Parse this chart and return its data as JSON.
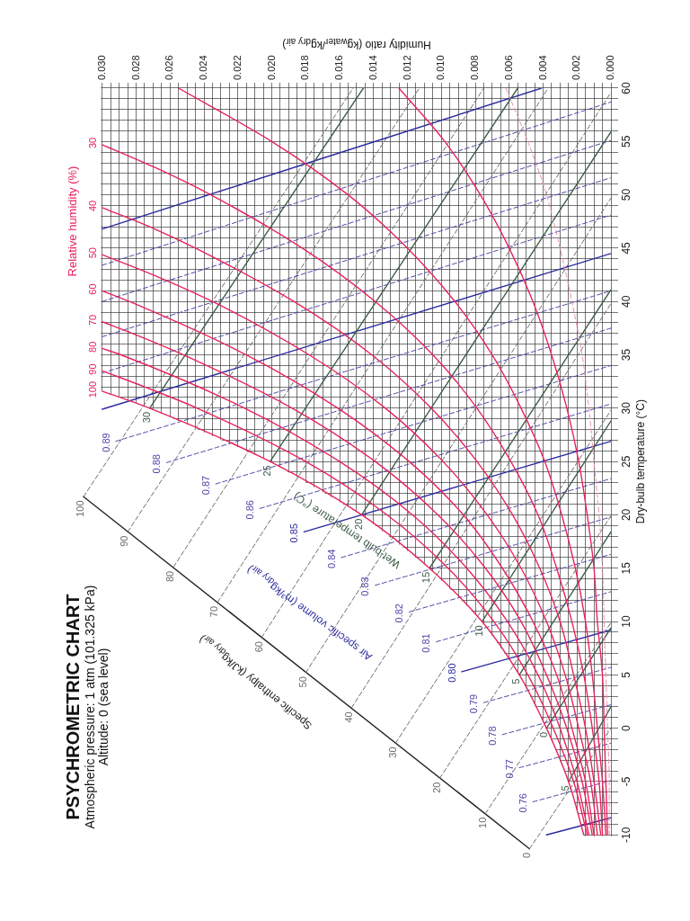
{
  "chart_data": {
    "type": "line",
    "title": "PSYCHROMETRIC CHART",
    "subtitle": "Atmospheric pressure: 1 atm (101.325 kPa)\nAltitude: 0 (sea level)",
    "xlabel": "Humidity ratio (kg$_{water}$/kg$_{dry air}$)",
    "ylabel": "Dry-bulb temperature (°C)",
    "xlim": [
      0.032,
      0
    ],
    "ylim": [
      -12,
      60
    ],
    "xticks": [
      {
        "value": 0,
        "label": "0.000"
      },
      {
        "value": 0.0005,
        "label": null
      },
      {
        "value": 0.001,
        "label": null
      },
      {
        "value": 0.0015,
        "label": null
      },
      {
        "value": 0.002,
        "label": "0.002"
      },
      {
        "value": 0.0025,
        "label": null
      },
      {
        "value": 0.003,
        "label": null
      },
      {
        "value": 0.0035,
        "label": null
      },
      {
        "value": 0.004,
        "label": "0.004"
      },
      {
        "value": 0.0045,
        "label": null
      },
      {
        "value": 0.005,
        "label": null
      },
      {
        "value": 0.0055,
        "label": null
      },
      {
        "value": 0.006,
        "label": "0.006"
      },
      {
        "value": 0.0065,
        "label": null
      },
      {
        "value": 0.007,
        "label": null
      },
      {
        "value": 0.0075,
        "label": null
      },
      {
        "value": 0.008,
        "label": "0.008"
      },
      {
        "value": 0.0085,
        "label": null
      },
      {
        "value": 0.009,
        "label": null
      },
      {
        "value": 0.0095,
        "label": null
      },
      {
        "value": 0.01,
        "label": "0.010"
      },
      {
        "value": 0.0105,
        "label": null
      },
      {
        "value": 0.011,
        "label": null
      },
      {
        "value": 0.0115,
        "label": null
      },
      {
        "value": 0.012,
        "label": "0.012"
      },
      {
        "value": 0.0125,
        "label": null
      },
      {
        "value": 0.013,
        "label": null
      },
      {
        "value": 0.0135,
        "label": null
      },
      {
        "value": 0.014,
        "label": "0.014"
      },
      {
        "value": 0.0145,
        "label": null
      },
      {
        "value": 0.015,
        "label": null
      },
      {
        "value": 0.0155,
        "label": null
      },
      {
        "value": 0.016,
        "label": "0.016"
      },
      {
        "value": 0.0165,
        "label": null
      },
      {
        "value": 0.017,
        "label": null
      },
      {
        "value": 0.0175,
        "label": null
      },
      {
        "value": 0.018,
        "label": "0.018"
      },
      {
        "value": 0.0185,
        "label": null
      },
      {
        "value": 0.019,
        "label": null
      },
      {
        "value": 0.0195,
        "label": null
      },
      {
        "value": 0.02,
        "label": "0.020"
      },
      {
        "value": 0.0205,
        "label": null
      },
      {
        "value": 0.021,
        "label": null
      },
      {
        "value": 0.0215,
        "label": null
      },
      {
        "value": 0.022,
        "label": "0.022"
      },
      {
        "value": 0.0225,
        "label": null
      },
      {
        "value": 0.023,
        "label": null
      },
      {
        "value": 0.0235,
        "label": null
      },
      {
        "value": 0.024,
        "label": "0.024"
      },
      {
        "value": 0.0245,
        "label": null
      },
      {
        "value": 0.025,
        "label": null
      },
      {
        "value": 0.0255,
        "label": null
      },
      {
        "value": 0.026,
        "label": "0.026"
      },
      {
        "value": 0.0265,
        "label": null
      },
      {
        "value": 0.027,
        "label": null
      },
      {
        "value": 0.0275,
        "label": null
      },
      {
        "value": 0.028,
        "label": "0.028"
      },
      {
        "value": 0.0285,
        "label": null
      },
      {
        "value": 0.029,
        "label": null
      },
      {
        "value": 0.0295,
        "label": null
      },
      {
        "value": 0.03,
        "label": "0.030"
      }
    ],
    "yticks": [
      -10,
      {
        "value": -9,
        "label": null
      },
      {
        "value": -8,
        "label": null
      },
      {
        "value": -7,
        "label": null
      },
      {
        "value": -6,
        "label": null
      },
      -5,
      {
        "value": -4,
        "label": null
      },
      {
        "value": -3,
        "label": null
      },
      {
        "value": -2,
        "label": null
      },
      {
        "value": -1,
        "label": null
      },
      0,
      {
        "value": 1,
        "label": null
      },
      {
        "value": 2,
        "label": null
      },
      {
        "value": 3,
        "label": null
      },
      {
        "value": 4,
        "label": null
      },
      5,
      {
        "value": 6,
        "label": null
      },
      {
        "value": 7,
        "label": null
      },
      {
        "value": 8,
        "label": null
      },
      {
        "value": 9,
        "label": null
      },
      10,
      {
        "value": 11,
        "label": null
      },
      {
        "value": 12,
        "label": null
      },
      {
        "value": 13,
        "label": null
      },
      {
        "value": 14,
        "label": null
      },
      15,
      {
        "value": 16,
        "label": null
      },
      {
        "value": 17,
        "label": null
      },
      {
        "value": 18,
        "label": null
      },
      {
        "value": 19,
        "label": null
      },
      20,
      {
        "value": 21,
        "label": null
      },
      {
        "value": 22,
        "label": null
      },
      {
        "value": 23,
        "label": null
      },
      {
        "value": 24,
        "label": null
      },
      25,
      {
        "value": 26,
        "label": null
      },
      {
        "value": 27,
        "label": null
      },
      {
        "value": 28,
        "label": null
      },
      {
        "value": 29,
        "label": null
      },
      30,
      {
        "value": 31,
        "label": null
      },
      {
        "value": 32,
        "label": null
      },
      {
        "value": 33,
        "label": null
      },
      {
        "value": 34,
        "label": null
      },
      35,
      {
        "value": 36,
        "label": null
      },
      {
        "value": 37,
        "label": null
      },
      {
        "value": 38,
        "label": null
      },
      {
        "value": 39,
        "label": null
      },
      40,
      {
        "value": 41,
        "label": null
      },
      {
        "value": 42,
        "label": null
      },
      {
        "value": 43,
        "label": null
      },
      {
        "value": 44,
        "label": null
      },
      45,
      {
        "value": 46,
        "label": null
      },
      {
        "value": 47,
        "label": null
      },
      {
        "value": 48,
        "label": null
      },
      {
        "value": 49,
        "label": null
      },
      50,
      {
        "value": 51,
        "label": null
      },
      {
        "value": 52,
        "label": null
      },
      {
        "value": 53,
        "label": null
      },
      {
        "value": 54,
        "label": null
      },
      55,
      {
        "value": 56,
        "label": null
      },
      {
        "value": 57,
        "label": null
      },
      {
        "value": 58,
        "label": null
      },
      {
        "value": 59,
        "label": null
      },
      60
    ],
    "grid": true,
    "marker": "none",
    "series": [
      {
        "name": "100",
        "color": "#e8245c",
        "x": [
          0.03,
          0.0272,
          0.0201,
          0.0147,
          0.0107,
          0.0076,
          0.0054,
          0.0038,
          0.0025,
          0.0016
        ],
        "values": [
          31.6,
          30,
          25,
          20,
          15,
          10,
          5,
          0,
          -5,
          -10
        ]
      },
      {
        "name": "90",
        "color": "#e8245c",
        "x": [
          0.03,
          0.0275,
          0.0244,
          0.018,
          0.0132,
          0.0096,
          0.0069,
          0.0049,
          0.0034,
          0.0022,
          0.0014
        ],
        "values": [
          33.5,
          32,
          30,
          25,
          20,
          15,
          10,
          5,
          0,
          -5,
          -10
        ]
      },
      {
        "name": "80",
        "color": "#e8245c",
        "x": [
          0.03,
          0.0289,
          0.0216,
          0.016,
          0.0117,
          0.0085,
          0.0061,
          0.0043,
          0.003,
          0.002,
          0.0013
        ],
        "values": [
          35.6,
          35,
          30,
          25,
          20,
          15,
          10,
          5,
          0,
          -5,
          -10
        ]
      },
      {
        "name": "70",
        "color": "#e8245c",
        "x": [
          0.03,
          0.0282,
          0.0252,
          0.0188,
          0.0139,
          0.0102,
          0.0074,
          0.0053,
          0.0038,
          0.0026,
          0.0017,
          0.0011
        ],
        "values": [
          38.1,
          37,
          35,
          30,
          25,
          20,
          15,
          10,
          5,
          0,
          -5,
          -10
        ]
      },
      {
        "name": "60",
        "color": "#e8245c",
        "x": [
          0.03,
          0.0284,
          0.0215,
          0.0161,
          0.0119,
          0.0087,
          0.0064,
          0.0046,
          0.0032,
          0.0023,
          0.0015,
          0.001
        ],
        "values": [
          41,
          40,
          35,
          30,
          25,
          20,
          15,
          10,
          5,
          0,
          -5,
          -10
        ]
      },
      {
        "name": "50",
        "color": "#e8245c",
        "x": [
          0.03,
          0.027,
          0.0235,
          0.0178,
          0.0133,
          0.0099,
          0.0073,
          0.0053,
          0.0038,
          0.0027,
          0.0019,
          0.0012,
          0.0008
        ],
        "values": [
          44.4,
          42.5,
          40,
          35,
          30,
          25,
          20,
          15,
          10,
          5,
          0,
          -5,
          -10
        ]
      },
      {
        "name": "40",
        "color": "#e8245c",
        "x": [
          0.03,
          0.0272,
          0.0245,
          0.0187,
          0.0141,
          0.0106,
          0.0079,
          0.0058,
          0.0042,
          0.003,
          0.0022,
          0.0015,
          0.001,
          0.0006
        ],
        "values": [
          48.8,
          47,
          45,
          40,
          35,
          30,
          25,
          20,
          15,
          10,
          5,
          0,
          -5,
          -10
        ]
      },
      {
        "name": "30",
        "color": "#e8245c",
        "x": [
          0.03,
          0.0268,
          0.0236,
          0.0182,
          0.0139,
          0.0105,
          0.0079,
          0.0059,
          0.0043,
          0.0032,
          0.0023,
          0.0016,
          0.0011,
          0.0007,
          0.0005
        ],
        "values": [
          54.7,
          52.5,
          50,
          45,
          40,
          35,
          30,
          25,
          20,
          15,
          10,
          5,
          0,
          -5,
          -10
        ]
      },
      {
        "color": "#e8245c",
        "x": [
          0.0255,
          0.02,
          0.0155,
          0.012,
          0.0092,
          0.007,
          0.0053,
          0.0039,
          0.0029,
          0.0021,
          0.0015,
          0.0011,
          0.0008,
          0.0005,
          0.0003
        ],
        "values": [
          60,
          55,
          50,
          45,
          40,
          35,
          30,
          25,
          20,
          15,
          10,
          5,
          0,
          -5,
          -10
        ]
      },
      {
        "color": "#e8245c",
        "x": [
          0.0125,
          0.0098,
          0.0077,
          0.006,
          0.0046,
          0.0035,
          0.0026,
          0.0019,
          0.0014,
          0.001,
          0.0008,
          0.0005,
          0.0004,
          0.0003,
          0.0002
        ],
        "values": [
          60,
          55,
          50,
          45,
          40,
          35,
          30,
          25,
          20,
          15,
          10,
          5,
          0,
          -5,
          -10
        ]
      },
      {
        "color": "#ec8fae",
        "line_style": "dashed",
        "x": [
          0.0062,
          0.0049,
          0.0038,
          0.003,
          0.0023,
          0.0017,
          0.0013,
          0.001,
          0.0007,
          0.0005,
          0.0004,
          0.0003,
          0.0002,
          0.0001,
          0.0001
        ],
        "values": [
          60,
          55,
          50,
          45,
          40,
          35,
          30,
          25,
          20,
          15,
          10,
          5,
          0,
          -5,
          -10
        ]
      },
      {
        "name": "30",
        "color": "#3f5e48",
        "x": [
          0.0272,
          0.0146
        ],
        "values": [
          30,
          60
        ]
      },
      {
        "name": "25",
        "color": "#3f5e48",
        "x": [
          0.0201,
          0.0055
        ],
        "values": [
          25,
          60
        ]
      },
      {
        "name": "20",
        "color": "#3f5e48",
        "x": [
          0.0147,
          0
        ],
        "values": [
          20,
          55.9
        ]
      },
      {
        "name": "15",
        "color": "#3f5e48",
        "x": [
          0.0107,
          0
        ],
        "values": [
          15,
          41.1
        ]
      },
      {
        "name": "10",
        "color": "#3f5e48",
        "x": [
          0.0076,
          0
        ],
        "values": [
          10,
          28.8
        ]
      },
      {
        "name": "5",
        "color": "#3f5e48",
        "x": [
          0.0054,
          0
        ],
        "values": [
          5,
          18.4
        ]
      },
      {
        "name": "0",
        "color": "#3f5e48",
        "x": [
          0.0038,
          0
        ],
        "values": [
          0,
          9.4
        ]
      },
      {
        "name": "-5",
        "color": "#3f5e48",
        "x": [
          0.0025,
          0
        ],
        "values": [
          -5,
          2
        ]
      },
      {
        "name": "0.76",
        "color": "#5048a8",
        "line_style": "dashed",
        "x": [
          0.0046,
          0
        ],
        "values": [
          -6.9,
          -4.9
        ]
      },
      {
        "name": "0.77",
        "color": "#5048a8",
        "line_style": "dashed",
        "x": [
          0.0054,
          0
        ],
        "values": [
          -3.7,
          -1.4
        ]
      },
      {
        "name": "0.78",
        "color": "#5048a8",
        "line_style": "dashed",
        "x": [
          0.0064,
          0
        ],
        "values": [
          -0.6,
          2.2
        ]
      },
      {
        "name": "0.79",
        "color": "#5048a8",
        "line_style": "dashed",
        "x": [
          0.0075,
          0
        ],
        "values": [
          2.4,
          5.7
        ]
      },
      {
        "name": "0.80",
        "color": "#2b2ba0",
        "x": [
          0.0088,
          0
        ],
        "values": [
          5.3,
          9.2
        ]
      },
      {
        "name": "0.81",
        "color": "#5048a8",
        "line_style": "dashed",
        "x": [
          0.0103,
          0
        ],
        "values": [
          8.1,
          12.8
        ]
      },
      {
        "name": "0.82",
        "color": "#5048a8",
        "line_style": "dashed",
        "x": [
          0.0119,
          0
        ],
        "values": [
          10.9,
          16.3
        ]
      },
      {
        "name": "0.83",
        "color": "#5048a8",
        "line_style": "dashed",
        "x": [
          0.0139,
          0
        ],
        "values": [
          13.4,
          19.8
        ]
      },
      {
        "name": "0.84",
        "color": "#5048a8",
        "line_style": "dashed",
        "x": [
          0.0159,
          0
        ],
        "values": [
          16,
          23.4
        ]
      },
      {
        "name": "0.85",
        "color": "#2b2ba0",
        "x": [
          0.0181,
          0
        ],
        "values": [
          18.4,
          26.9
        ]
      },
      {
        "name": "0.86",
        "color": "#5048a8",
        "line_style": "dashed",
        "x": [
          0.0207,
          0
        ],
        "values": [
          20.6,
          30.4
        ]
      },
      {
        "name": "0.87",
        "color": "#5048a8",
        "line_style": "dashed",
        "x": [
          0.0233,
          0
        ],
        "values": [
          22.9,
          34
        ]
      },
      {
        "name": "0.88",
        "color": "#5048a8",
        "line_style": "dashed",
        "x": [
          0.0262,
          0
        ],
        "values": [
          24.9,
          37.5
        ]
      },
      {
        "name": "0.89",
        "color": "#5048a8",
        "line_style": "dashed",
        "x": [
          0.0292,
          0
        ],
        "values": [
          26.9,
          41
        ]
      },
      {
        "color": "#2b2ba0",
        "x": [
          0.0038,
          0
        ],
        "values": [
          -10,
          -8.4
        ]
      },
      {
        "color": "#2b2ba0",
        "x": [
          0.03,
          0
        ],
        "values": [
          29.9,
          44.5
        ]
      },
      {
        "color": "#5048a8",
        "line_style": "dashed",
        "x": [
          0.03,
          0
        ],
        "values": [
          33.3,
          48.1
        ]
      },
      {
        "color": "#5048a8",
        "line_style": "dashed",
        "x": [
          0.03,
          0
        ],
        "values": [
          36.7,
          51.6
        ]
      },
      {
        "color": "#5048a8",
        "line_style": "dashed",
        "x": [
          0.03,
          0
        ],
        "values": [
          40,
          55.1
        ]
      },
      {
        "color": "#5048a8",
        "line_style": "dashed",
        "x": [
          0.03,
          0
        ],
        "values": [
          43.4,
          58.7
        ]
      },
      {
        "color": "#2b2ba0",
        "x": [
          0.03,
          0.0041
        ],
        "values": [
          46.8,
          60
        ]
      },
      {
        "name": "0",
        "color": "#6e6e6e",
        "line_style": "dashed",
        "x": [
          0.0048,
          0
        ],
        "values": [
          -11.3,
          0
        ]
      },
      {
        "name": "10",
        "color": "#6e6e6e",
        "line_style": "dashed",
        "x": [
          0.0074,
          0
        ],
        "values": [
          -8,
          9.9
        ]
      },
      {
        "name": "20",
        "color": "#6e6e6e",
        "line_style": "dashed",
        "x": [
          0.0101,
          0
        ],
        "values": [
          -4.7,
          19.9
        ]
      },
      {
        "name": "30",
        "color": "#6e6e6e",
        "line_style": "dashed",
        "x": [
          0.0127,
          0
        ],
        "values": [
          -1.4,
          29.8
        ]
      },
      {
        "name": "40",
        "color": "#6e6e6e",
        "line_style": "dashed",
        "x": [
          0.0153,
          0
        ],
        "values": [
          1.9,
          39.8
        ]
      },
      {
        "name": "50",
        "color": "#6e6e6e",
        "line_style": "dashed",
        "x": [
          0.018,
          0
        ],
        "values": [
          5.2,
          49.7
        ]
      },
      {
        "name": "60",
        "color": "#6e6e6e",
        "line_style": "dashed",
        "x": [
          0.0206,
          0
        ],
        "values": [
          8.5,
          59.6
        ]
      },
      {
        "name": "70",
        "color": "#6e6e6e",
        "line_style": "dashed",
        "x": [
          0.0232,
          0.0037
        ],
        "values": [
          11.8,
          60
        ]
      },
      {
        "name": "80",
        "color": "#6e6e6e",
        "line_style": "dashed",
        "x": [
          0.0258,
          0.0075
        ],
        "values": [
          15.1,
          60
        ]
      },
      {
        "name": "90",
        "color": "#6e6e6e",
        "line_style": "dashed",
        "x": [
          0.0285,
          0.0113
        ],
        "values": [
          18.4,
          60
        ]
      },
      {
        "name": "100",
        "color": "#6e6e6e",
        "line_style": "dashed",
        "x": [
          0.0311,
          0.0152
        ],
        "values": [
          21.7,
          60
        ]
      },
      {
        "color": "#222222",
        "x": [
          0.0048,
          0.0311
        ],
        "values": [
          -11.3,
          21.7
        ]
      }
    ],
    "annotations": [
      "Relative humidity (%)",
      "Wet-bulb temperature (°C)",
      "Air specific volume (m³/kg$_{dry air}$)",
      "Specific enthalpy (kJ/kg$_{dry air}$)"
    ]
  }
}
